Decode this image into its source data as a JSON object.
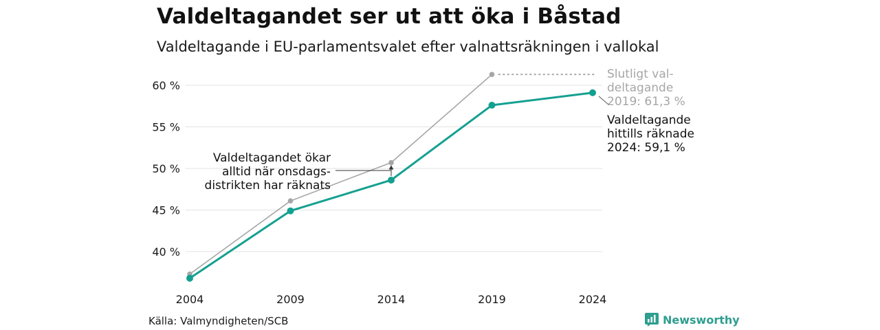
{
  "title": "Valdeltagandet ser ut att öka i Båstad",
  "subtitle": "Valdeltagande i EU-parlamentsvalet efter valnattsräkningen i vallokal",
  "source": "Källa: Valmyndigheten/SCB",
  "brand": "Newsworthy",
  "colors": {
    "final": "#a6a6a6",
    "counted": "#14a090",
    "grid": "#e3e3e3",
    "brand": "#2e9e8f"
  },
  "chart_data": {
    "type": "line",
    "categories": [
      "2004",
      "2009",
      "2014",
      "2019",
      "2024"
    ],
    "ylim": [
      35.5,
      62.5
    ],
    "yticks": [
      40,
      45,
      50,
      55,
      60
    ],
    "ytick_labels": [
      "40 %",
      "45 %",
      "50 %",
      "55 %",
      "60 %"
    ],
    "grid": true,
    "series": [
      {
        "key": "final",
        "values": [
          37.3,
          46.1,
          50.7,
          61.3,
          null
        ]
      },
      {
        "key": "counted",
        "values": [
          36.8,
          44.9,
          48.6,
          57.6,
          59.1
        ]
      }
    ],
    "annotations": {
      "final_label": [
        "Slutligt val-",
        "deltagande",
        "2019: 61,3 %"
      ],
      "counted_label": [
        "Valdeltagande",
        "hittills räknade",
        "2024: 59,1 %"
      ],
      "note": [
        "Valdeltagandet ökar",
        "alltid när onsdags-",
        "distrikten har räknats"
      ]
    }
  }
}
